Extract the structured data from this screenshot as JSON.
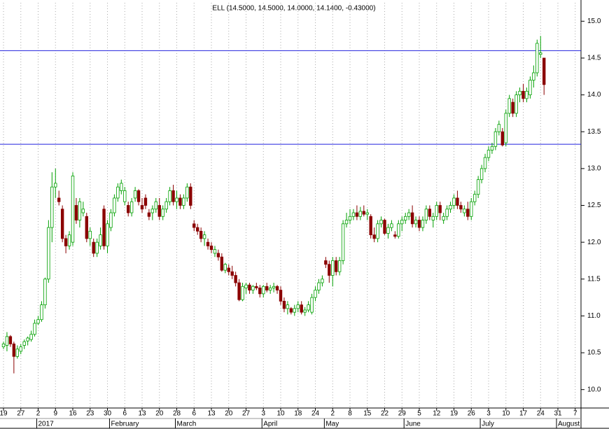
{
  "chart_data": {
    "type": "candlestick",
    "title": "ELL (14.5000, 14.5000, 14.0000, 14.1400, -0.43000)",
    "categories": [
      "19",
      null,
      null,
      null,
      null,
      "27",
      null,
      null,
      null,
      null,
      "2",
      null,
      null,
      null,
      null,
      "9",
      null,
      null,
      null,
      null,
      "16",
      null,
      null,
      null,
      null,
      "23",
      null,
      null,
      null,
      null,
      "30",
      null,
      null,
      null,
      null,
      "6",
      null,
      null,
      null,
      null,
      "13",
      null,
      null,
      null,
      null,
      "20",
      null,
      null,
      null,
      null,
      "28",
      null,
      null,
      null,
      null,
      "6",
      null,
      null,
      null,
      null,
      "13",
      null,
      null,
      null,
      null,
      "20",
      null,
      null,
      null,
      null,
      "27",
      null,
      null,
      null,
      null,
      "3",
      null,
      null,
      null,
      null,
      "10",
      null,
      null,
      null,
      null,
      "18",
      null,
      null,
      null,
      null,
      "24",
      null,
      null,
      null,
      null,
      "2",
      null,
      null,
      null,
      null,
      "8",
      null,
      null,
      null,
      null,
      "15",
      null,
      null,
      null,
      null,
      "22",
      null,
      null,
      null,
      null,
      "29",
      null,
      null,
      null,
      null,
      "5",
      null,
      null,
      null,
      null,
      "12",
      null,
      null,
      null,
      null,
      "19",
      null,
      null,
      null,
      null,
      "26",
      null,
      null,
      null,
      null,
      "3",
      null,
      null,
      null,
      null,
      "10",
      null,
      null,
      null,
      null,
      "17",
      null,
      null,
      null,
      null,
      "24",
      null,
      null,
      null,
      null,
      "31",
      null,
      null,
      null,
      null,
      "7",
      null,
      null,
      null,
      null
    ],
    "month_labels": [
      null,
      null,
      null,
      null,
      null,
      null,
      null,
      null,
      null,
      null,
      "2017",
      null,
      null,
      null,
      null,
      null,
      null,
      null,
      null,
      null,
      null,
      null,
      null,
      null,
      null,
      null,
      null,
      null,
      null,
      null,
      null,
      "February",
      null,
      null,
      null,
      null,
      null,
      null,
      null,
      null,
      null,
      null,
      null,
      null,
      null,
      null,
      null,
      null,
      null,
      null,
      "March",
      null,
      null,
      null,
      null,
      null,
      null,
      null,
      null,
      null,
      null,
      null,
      null,
      null,
      null,
      null,
      null,
      null,
      null,
      null,
      null,
      null,
      null,
      null,
      null,
      "April",
      null,
      null,
      null,
      null,
      null,
      null,
      null,
      null,
      null,
      null,
      null,
      null,
      null,
      null,
      null,
      null,
      null,
      "May",
      null,
      null,
      null,
      null,
      null,
      null,
      null,
      null,
      null,
      null,
      null,
      null,
      null,
      null,
      null,
      null,
      null,
      null,
      null,
      null,
      null,
      null,
      "June",
      null,
      null,
      null,
      null,
      null,
      null,
      null,
      null,
      null,
      null,
      null,
      null,
      null,
      null,
      null,
      null,
      null,
      null,
      null,
      null,
      null,
      "July",
      null,
      null,
      null,
      null,
      null,
      null,
      null,
      null,
      null,
      null,
      null,
      null,
      null,
      null,
      null,
      null,
      null,
      null,
      null,
      null,
      null,
      "August",
      null,
      null,
      null,
      null,
      null,
      null,
      null,
      null,
      null
    ],
    "ohlc": [
      [
        10.58,
        10.65,
        10.55,
        10.62
      ],
      [
        10.6,
        10.78,
        10.52,
        10.72
      ],
      [
        10.72,
        10.74,
        10.58,
        10.62
      ],
      [
        10.62,
        10.65,
        10.22,
        10.45
      ],
      [
        10.45,
        10.6,
        10.42,
        10.55
      ],
      [
        10.52,
        10.62,
        10.48,
        10.58
      ],
      [
        10.6,
        10.68,
        10.55,
        10.65
      ],
      [
        10.66,
        10.72,
        10.6,
        10.7
      ],
      [
        10.68,
        10.8,
        10.65,
        10.75
      ],
      [
        10.75,
        10.95,
        10.72,
        10.9
      ],
      [
        10.9,
        11.0,
        10.88,
        10.95
      ],
      [
        10.95,
        11.2,
        10.92,
        11.15
      ],
      [
        11.15,
        11.52,
        11.1,
        11.5
      ],
      [
        11.5,
        12.3,
        11.45,
        12.2
      ],
      [
        12.2,
        12.95,
        12.0,
        12.75
      ],
      [
        12.75,
        13.0,
        12.6,
        12.8
      ],
      [
        12.6,
        12.7,
        12.5,
        12.55
      ],
      [
        12.45,
        12.5,
        12.0,
        12.05
      ],
      [
        12.05,
        12.1,
        11.85,
        11.95
      ],
      [
        11.95,
        12.15,
        11.9,
        12.1
      ],
      [
        12.0,
        12.95,
        11.95,
        12.9
      ],
      [
        12.5,
        12.6,
        12.25,
        12.3
      ],
      [
        12.3,
        12.6,
        12.2,
        12.55
      ],
      [
        12.4,
        12.55,
        12.35,
        12.45
      ],
      [
        12.35,
        12.4,
        12.0,
        12.05
      ],
      [
        12.05,
        12.2,
        11.95,
        12.15
      ],
      [
        12.0,
        12.05,
        11.8,
        11.85
      ],
      [
        11.85,
        12.05,
        11.8,
        12.0
      ],
      [
        11.95,
        12.2,
        11.9,
        12.1
      ],
      [
        12.45,
        12.5,
        11.9,
        11.95
      ],
      [
        11.95,
        12.3,
        11.85,
        12.25
      ],
      [
        12.2,
        12.45,
        12.15,
        12.4
      ],
      [
        12.4,
        12.65,
        12.35,
        12.6
      ],
      [
        12.6,
        12.8,
        12.55,
        12.75
      ],
      [
        12.7,
        12.85,
        12.65,
        12.8
      ],
      [
        12.55,
        12.75,
        12.5,
        12.7
      ],
      [
        12.5,
        12.55,
        12.35,
        12.4
      ],
      [
        12.4,
        12.6,
        12.35,
        12.55
      ],
      [
        12.6,
        12.75,
        12.55,
        12.7
      ],
      [
        12.7,
        12.72,
        12.5,
        12.55
      ],
      [
        12.5,
        12.6,
        12.4,
        12.45
      ],
      [
        12.6,
        12.65,
        12.45,
        12.5
      ],
      [
        12.4,
        12.45,
        12.3,
        12.35
      ],
      [
        12.4,
        12.5,
        12.3,
        12.45
      ],
      [
        12.45,
        12.6,
        12.4,
        12.55
      ],
      [
        12.5,
        12.6,
        12.3,
        12.35
      ],
      [
        12.35,
        12.5,
        12.3,
        12.45
      ],
      [
        12.45,
        12.6,
        12.4,
        12.55
      ],
      [
        12.55,
        12.75,
        12.5,
        12.7
      ],
      [
        12.7,
        12.78,
        12.5,
        12.55
      ],
      [
        12.55,
        12.7,
        12.45,
        12.6
      ],
      [
        12.6,
        12.65,
        12.45,
        12.5
      ],
      [
        12.5,
        12.65,
        12.45,
        12.6
      ],
      [
        12.6,
        12.8,
        12.55,
        12.75
      ],
      [
        12.75,
        12.8,
        12.45,
        12.5
      ],
      [
        12.25,
        12.3,
        12.15,
        12.2
      ],
      [
        12.2,
        12.25,
        12.1,
        12.15
      ],
      [
        12.15,
        12.2,
        12.0,
        12.05
      ],
      [
        12.05,
        12.15,
        11.95,
        12.1
      ],
      [
        12.0,
        12.05,
        11.9,
        11.95
      ],
      [
        11.95,
        12.0,
        11.85,
        11.9
      ],
      [
        11.85,
        11.95,
        11.8,
        11.9
      ],
      [
        11.85,
        11.9,
        11.75,
        11.8
      ],
      [
        11.8,
        11.85,
        11.6,
        11.62
      ],
      [
        11.62,
        11.72,
        11.58,
        11.7
      ],
      [
        11.65,
        11.7,
        11.55,
        11.6
      ],
      [
        11.6,
        11.68,
        11.5,
        11.55
      ],
      [
        11.55,
        11.6,
        11.4,
        11.45
      ],
      [
        11.45,
        11.5,
        11.2,
        11.22
      ],
      [
        11.22,
        11.45,
        11.2,
        11.4
      ],
      [
        11.38,
        11.45,
        11.3,
        11.42
      ],
      [
        11.42,
        11.45,
        11.3,
        11.35
      ],
      [
        11.35,
        11.42,
        11.3,
        11.4
      ],
      [
        11.4,
        11.45,
        11.35,
        11.38
      ],
      [
        11.38,
        11.42,
        11.25,
        11.3
      ],
      [
        11.3,
        11.42,
        11.25,
        11.4
      ],
      [
        11.4,
        11.45,
        11.32,
        11.35
      ],
      [
        11.35,
        11.42,
        11.3,
        11.38
      ],
      [
        11.38,
        11.45,
        11.32,
        11.4
      ],
      [
        11.4,
        11.42,
        11.3,
        11.35
      ],
      [
        11.35,
        11.4,
        11.15,
        11.2
      ],
      [
        11.2,
        11.25,
        11.05,
        11.1
      ],
      [
        11.1,
        11.2,
        11.02,
        11.15
      ],
      [
        11.1,
        11.12,
        11.02,
        11.05
      ],
      [
        11.05,
        11.15,
        11.0,
        11.1
      ],
      [
        11.1,
        11.2,
        11.05,
        11.15
      ],
      [
        11.15,
        11.2,
        11.02,
        11.05
      ],
      [
        11.05,
        11.12,
        11.0,
        11.08
      ],
      [
        11.08,
        11.2,
        11.05,
        11.15
      ],
      [
        11.05,
        11.3,
        11.02,
        11.25
      ],
      [
        11.25,
        11.4,
        11.2,
        11.35
      ],
      [
        11.35,
        11.5,
        11.3,
        11.45
      ],
      [
        11.45,
        11.55,
        11.4,
        11.5
      ],
      [
        11.75,
        11.8,
        11.65,
        11.7
      ],
      [
        11.7,
        11.75,
        11.45,
        11.55
      ],
      [
        11.55,
        11.8,
        11.4,
        11.75
      ],
      [
        11.75,
        11.8,
        11.55,
        11.6
      ],
      [
        11.6,
        11.8,
        11.55,
        11.75
      ],
      [
        11.75,
        12.3,
        11.7,
        12.25
      ],
      [
        12.25,
        12.4,
        12.2,
        12.3
      ],
      [
        12.3,
        12.45,
        12.25,
        12.35
      ],
      [
        12.35,
        12.45,
        12.3,
        12.4
      ],
      [
        12.4,
        12.5,
        12.3,
        12.35
      ],
      [
        12.35,
        12.48,
        12.3,
        12.42
      ],
      [
        12.42,
        12.5,
        12.35,
        12.38
      ],
      [
        12.38,
        12.45,
        12.3,
        12.4
      ],
      [
        12.35,
        12.38,
        12.05,
        12.1
      ],
      [
        12.1,
        12.2,
        12.0,
        12.05
      ],
      [
        12.05,
        12.3,
        12.0,
        12.25
      ],
      [
        12.25,
        12.35,
        12.2,
        12.3
      ],
      [
        12.3,
        12.32,
        12.1,
        12.12
      ],
      [
        12.12,
        12.25,
        12.05,
        12.2
      ],
      [
        12.2,
        12.3,
        12.15,
        12.25
      ],
      [
        12.1,
        12.15,
        12.05,
        12.08
      ],
      [
        12.08,
        12.3,
        12.05,
        12.25
      ],
      [
        12.25,
        12.35,
        12.15,
        12.3
      ],
      [
        12.3,
        12.4,
        12.25,
        12.35
      ],
      [
        12.35,
        12.45,
        12.3,
        12.4
      ],
      [
        12.4,
        12.5,
        12.2,
        12.25
      ],
      [
        12.25,
        12.35,
        12.2,
        12.3
      ],
      [
        12.3,
        12.35,
        12.15,
        12.2
      ],
      [
        12.2,
        12.35,
        12.15,
        12.3
      ],
      [
        12.3,
        12.5,
        12.25,
        12.45
      ],
      [
        12.45,
        12.5,
        12.3,
        12.35
      ],
      [
        12.3,
        12.4,
        12.2,
        12.35
      ],
      [
        12.35,
        12.55,
        12.3,
        12.5
      ],
      [
        12.5,
        12.55,
        12.3,
        12.4
      ],
      [
        12.3,
        12.4,
        12.25,
        12.35
      ],
      [
        12.35,
        12.5,
        12.3,
        12.45
      ],
      [
        12.45,
        12.55,
        12.4,
        12.5
      ],
      [
        12.5,
        12.65,
        12.45,
        12.6
      ],
      [
        12.6,
        12.7,
        12.45,
        12.5
      ],
      [
        12.5,
        12.55,
        12.4,
        12.45
      ],
      [
        12.4,
        12.5,
        12.35,
        12.45
      ],
      [
        12.45,
        12.55,
        12.3,
        12.35
      ],
      [
        12.35,
        12.6,
        12.3,
        12.55
      ],
      [
        12.55,
        12.7,
        12.5,
        12.65
      ],
      [
        12.65,
        12.9,
        12.6,
        12.85
      ],
      [
        12.85,
        13.05,
        12.8,
        13.0
      ],
      [
        13.0,
        13.2,
        12.95,
        13.15
      ],
      [
        13.15,
        13.3,
        13.1,
        13.25
      ],
      [
        13.25,
        13.35,
        13.2,
        13.3
      ],
      [
        13.3,
        13.55,
        13.25,
        13.5
      ],
      [
        13.5,
        13.65,
        13.45,
        13.6
      ],
      [
        13.5,
        13.55,
        13.3,
        13.32
      ],
      [
        13.35,
        13.8,
        13.3,
        13.75
      ],
      [
        13.75,
        14.0,
        13.7,
        13.95
      ],
      [
        13.9,
        13.95,
        13.7,
        13.75
      ],
      [
        13.75,
        14.05,
        13.7,
        14.0
      ],
      [
        14.0,
        14.1,
        13.9,
        14.05
      ],
      [
        14.05,
        14.15,
        13.9,
        13.95
      ],
      [
        13.95,
        14.1,
        13.9,
        14.05
      ],
      [
        14.0,
        14.25,
        13.95,
        14.2
      ],
      [
        14.2,
        14.4,
        14.1,
        14.3
      ],
      [
        14.3,
        14.75,
        14.25,
        14.7
      ],
      [
        14.55,
        14.8,
        14.5,
        14.57
      ],
      [
        14.5,
        14.5,
        14.0,
        14.14
      ],
      null,
      null,
      null,
      null,
      null,
      null,
      null,
      null,
      null,
      null,
      null,
      null,
      null
    ],
    "up_color": "#00a000",
    "down_color": "#8b0000",
    "hlines": [
      14.6,
      13.33
    ],
    "hline_color": "#2222dd",
    "ylim": [
      9.75,
      15.25
    ],
    "yticks": [
      {
        "value": 10,
        "label": "10.0"
      },
      {
        "value": 10.5,
        "label": "10.5"
      },
      {
        "value": 11,
        "label": "11.0"
      },
      {
        "value": 11.5,
        "label": "11.5"
      },
      {
        "value": 12,
        "label": "12.0"
      },
      {
        "value": 12.5,
        "label": "12.5"
      },
      {
        "value": 13,
        "label": "13.0"
      },
      {
        "value": 13.5,
        "label": "13.5"
      },
      {
        "value": 14,
        "label": "14.0"
      },
      {
        "value": 14.5,
        "label": "14.5"
      },
      {
        "value": 15,
        "label": "15.0"
      }
    ],
    "grid": true
  }
}
